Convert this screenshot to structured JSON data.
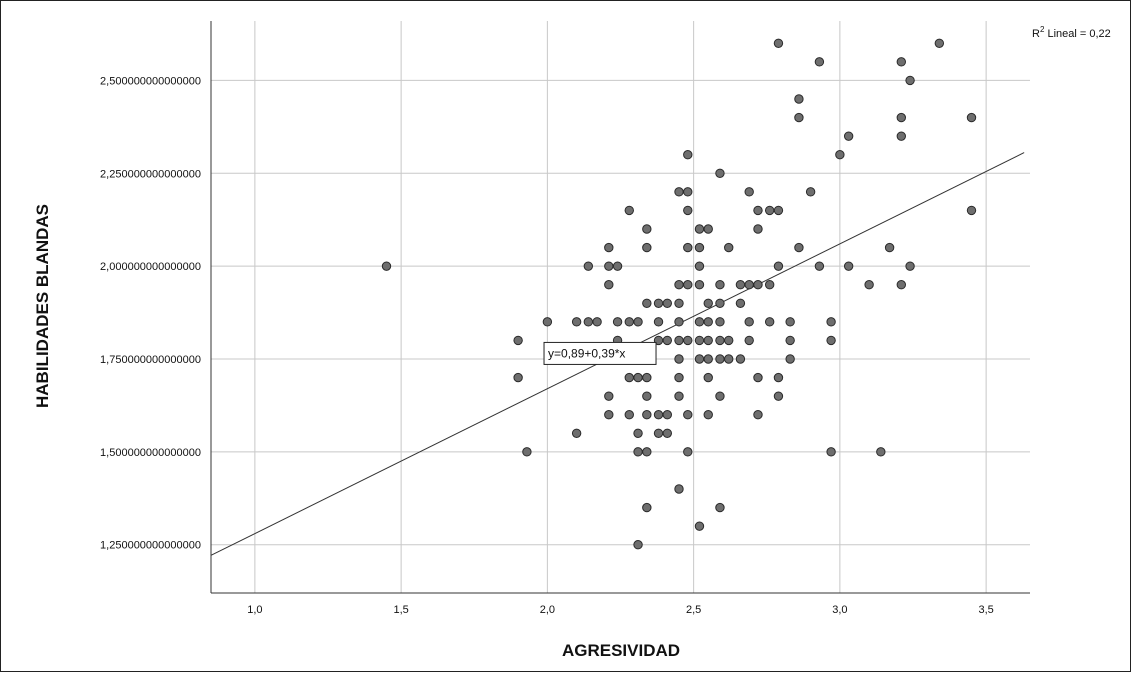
{
  "chart_data": {
    "type": "scatter",
    "xlabel": "AGRESIVIDAD",
    "ylabel": "HABILIDADES BLANDAS",
    "xlim": [
      0.85,
      3.65
    ],
    "ylim": [
      1.12,
      2.66
    ],
    "x_ticks": [
      1.0,
      1.5,
      2.0,
      2.5,
      3.0,
      3.5
    ],
    "x_tick_labels": [
      "1,0",
      "1,5",
      "2,0",
      "2,5",
      "3,0",
      "3,5"
    ],
    "y_ticks": [
      1.25,
      1.5,
      1.75,
      2.0,
      2.25,
      2.5
    ],
    "y_tick_labels": [
      "1,250000000000000",
      "1,500000000000000",
      "1,750000000000000",
      "2,000000000000000",
      "2,250000000000000",
      "2,500000000000000"
    ],
    "grid": true,
    "r2_label": "Lineal = 0,22",
    "r2_prefix": "R",
    "r2_sup": "2",
    "fit": {
      "intercept": 0.89,
      "slope": 0.39,
      "label": "y=0,89+0,39*x",
      "label_anchor": [
        2.18,
        1.765
      ]
    },
    "point_color": "#6e6e6e",
    "points": [
      [
        1.45,
        2.0
      ],
      [
        1.9,
        1.8
      ],
      [
        1.9,
        1.7
      ],
      [
        1.93,
        1.5
      ],
      [
        2.0,
        1.85
      ],
      [
        2.1,
        1.85
      ],
      [
        2.1,
        1.55
      ],
      [
        2.14,
        2.0
      ],
      [
        2.14,
        1.85
      ],
      [
        2.17,
        1.85
      ],
      [
        2.21,
        2.05
      ],
      [
        2.21,
        2.0
      ],
      [
        2.21,
        1.95
      ],
      [
        2.21,
        1.65
      ],
      [
        2.21,
        1.6
      ],
      [
        2.24,
        2.0
      ],
      [
        2.24,
        1.85
      ],
      [
        2.24,
        1.8
      ],
      [
        2.28,
        2.15
      ],
      [
        2.28,
        1.85
      ],
      [
        2.28,
        1.7
      ],
      [
        2.28,
        1.6
      ],
      [
        2.31,
        1.85
      ],
      [
        2.31,
        1.7
      ],
      [
        2.31,
        1.55
      ],
      [
        2.31,
        1.5
      ],
      [
        2.31,
        1.25
      ],
      [
        2.34,
        2.1
      ],
      [
        2.34,
        2.05
      ],
      [
        2.34,
        1.9
      ],
      [
        2.34,
        1.7
      ],
      [
        2.34,
        1.65
      ],
      [
        2.34,
        1.6
      ],
      [
        2.34,
        1.5
      ],
      [
        2.34,
        1.35
      ],
      [
        2.38,
        1.9
      ],
      [
        2.38,
        1.85
      ],
      [
        2.38,
        1.8
      ],
      [
        2.38,
        1.6
      ],
      [
        2.38,
        1.55
      ],
      [
        2.41,
        1.9
      ],
      [
        2.41,
        1.8
      ],
      [
        2.41,
        1.6
      ],
      [
        2.41,
        1.55
      ],
      [
        2.45,
        2.2
      ],
      [
        2.45,
        1.95
      ],
      [
        2.45,
        1.9
      ],
      [
        2.45,
        1.85
      ],
      [
        2.45,
        1.8
      ],
      [
        2.45,
        1.75
      ],
      [
        2.45,
        1.7
      ],
      [
        2.45,
        1.65
      ],
      [
        2.45,
        1.4
      ],
      [
        2.48,
        2.3
      ],
      [
        2.48,
        2.2
      ],
      [
        2.48,
        2.15
      ],
      [
        2.48,
        2.05
      ],
      [
        2.48,
        1.95
      ],
      [
        2.48,
        1.8
      ],
      [
        2.48,
        1.6
      ],
      [
        2.48,
        1.5
      ],
      [
        2.52,
        2.1
      ],
      [
        2.52,
        2.05
      ],
      [
        2.52,
        2.0
      ],
      [
        2.52,
        1.95
      ],
      [
        2.52,
        1.85
      ],
      [
        2.52,
        1.8
      ],
      [
        2.52,
        1.75
      ],
      [
        2.52,
        1.3
      ],
      [
        2.55,
        2.1
      ],
      [
        2.55,
        1.9
      ],
      [
        2.55,
        1.85
      ],
      [
        2.55,
        1.8
      ],
      [
        2.55,
        1.75
      ],
      [
        2.55,
        1.7
      ],
      [
        2.55,
        1.6
      ],
      [
        2.59,
        2.25
      ],
      [
        2.59,
        1.95
      ],
      [
        2.59,
        1.9
      ],
      [
        2.59,
        1.85
      ],
      [
        2.59,
        1.8
      ],
      [
        2.59,
        1.75
      ],
      [
        2.59,
        1.65
      ],
      [
        2.59,
        1.35
      ],
      [
        2.62,
        2.05
      ],
      [
        2.62,
        1.8
      ],
      [
        2.62,
        1.75
      ],
      [
        2.66,
        1.95
      ],
      [
        2.66,
        1.9
      ],
      [
        2.66,
        1.75
      ],
      [
        2.69,
        2.2
      ],
      [
        2.69,
        1.95
      ],
      [
        2.69,
        1.85
      ],
      [
        2.69,
        1.8
      ],
      [
        2.72,
        2.15
      ],
      [
        2.72,
        2.1
      ],
      [
        2.72,
        1.95
      ],
      [
        2.72,
        1.7
      ],
      [
        2.72,
        1.6
      ],
      [
        2.76,
        2.15
      ],
      [
        2.76,
        1.95
      ],
      [
        2.76,
        1.85
      ],
      [
        2.79,
        2.6
      ],
      [
        2.79,
        2.15
      ],
      [
        2.79,
        2.0
      ],
      [
        2.79,
        1.7
      ],
      [
        2.79,
        1.65
      ],
      [
        2.83,
        1.85
      ],
      [
        2.83,
        1.8
      ],
      [
        2.83,
        1.75
      ],
      [
        2.86,
        2.45
      ],
      [
        2.86,
        2.4
      ],
      [
        2.86,
        2.05
      ],
      [
        2.9,
        2.2
      ],
      [
        2.93,
        2.55
      ],
      [
        2.93,
        2.0
      ],
      [
        2.97,
        1.85
      ],
      [
        2.97,
        1.8
      ],
      [
        2.97,
        1.5
      ],
      [
        3.0,
        2.3
      ],
      [
        3.03,
        2.35
      ],
      [
        3.03,
        2.0
      ],
      [
        3.1,
        1.95
      ],
      [
        3.14,
        1.5
      ],
      [
        3.17,
        2.05
      ],
      [
        3.21,
        2.55
      ],
      [
        3.21,
        2.4
      ],
      [
        3.21,
        2.35
      ],
      [
        3.21,
        1.95
      ],
      [
        3.24,
        2.5
      ],
      [
        3.24,
        2.0
      ],
      [
        3.34,
        2.6
      ],
      [
        3.45,
        2.4
      ],
      [
        3.45,
        2.15
      ]
    ]
  }
}
